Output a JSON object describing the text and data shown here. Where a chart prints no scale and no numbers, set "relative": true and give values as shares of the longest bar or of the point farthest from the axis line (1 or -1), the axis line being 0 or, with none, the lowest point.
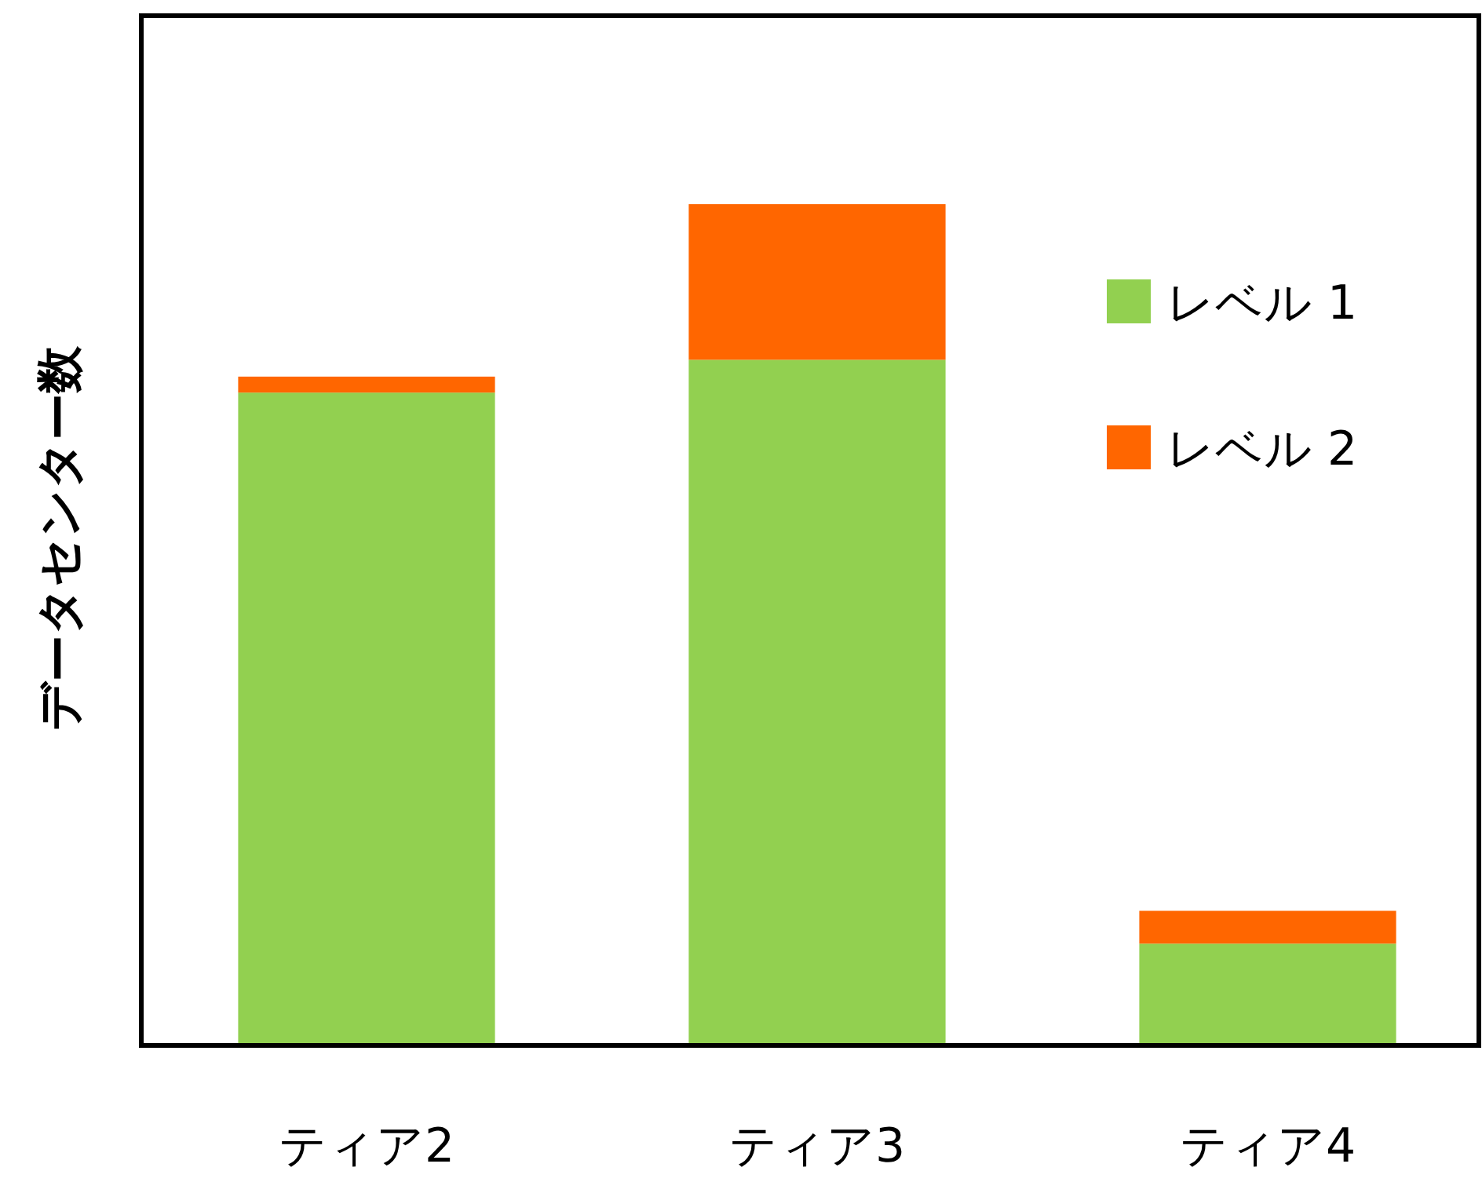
{
  "chart_data": {
    "type": "bar",
    "ylabel": "データセンター数",
    "categories": [
      "ティア2",
      "ティア3",
      "ティア4"
    ],
    "stacked": true,
    "relative": true,
    "legend": "top right",
    "grid": false,
    "series": [
      {
        "name": "レベル 1",
        "color": "#92d050",
        "values": [
          0.776,
          0.815,
          0.121
        ]
      },
      {
        "name": "レベル 2",
        "color": "#ff6600",
        "values": [
          0.019,
          0.185,
          0.039
        ]
      }
    ]
  }
}
